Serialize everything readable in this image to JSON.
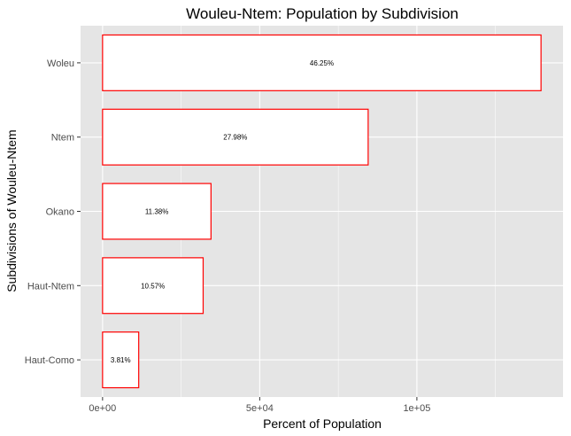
{
  "chart_data": {
    "type": "bar",
    "orientation": "horizontal",
    "title": "Wouleu-Ntem: Population by Subdivision",
    "xlabel": "Percent of Population",
    "ylabel": "Subdivisions of Wouleu-Ntem",
    "categories": [
      "Haut-Como",
      "Haut-Ntem",
      "Okano",
      "Ntem",
      "Woleu"
    ],
    "values": [
      11500,
      32000,
      34500,
      84500,
      139500
    ],
    "data_labels": [
      "3.81%",
      "10.57%",
      "11.38%",
      "27.98%",
      "46.25%"
    ],
    "x_ticks": [
      0,
      50000,
      100000
    ],
    "x_tick_labels": [
      "0e+00",
      "5e+04",
      "1e+05"
    ],
    "xlim": [
      -7000,
      146500
    ],
    "grid": true,
    "colors": {
      "panel_background": "#e5e5e5",
      "grid_line": "#ffffff",
      "bar_fill": "#ffffff",
      "bar_outline": "#ff0000",
      "tick_label": "#4d4d4d",
      "text": "#000000"
    }
  }
}
